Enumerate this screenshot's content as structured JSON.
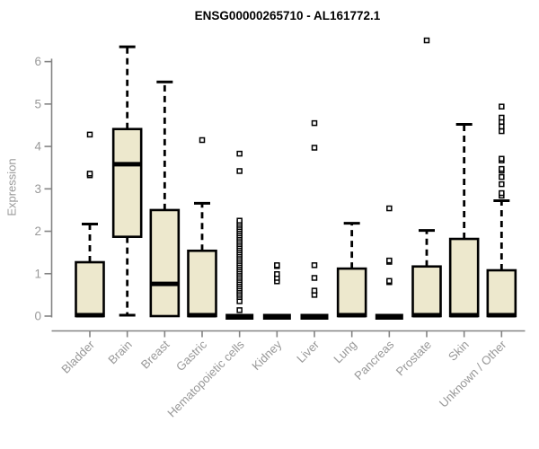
{
  "figure": {
    "title": "ENSG00000265710 - AL161772.1",
    "ylabel": "Expression"
  },
  "chart_data": {
    "type": "boxplot",
    "title": "ENSG00000265710 - AL161772.1",
    "xlabel": "",
    "ylabel": "Expression",
    "ylim": [
      0,
      6.6
    ],
    "yticks": [
      0,
      1,
      2,
      3,
      4,
      5,
      6
    ],
    "grid": false,
    "legend": false,
    "categories": [
      "Bladder",
      "Brain",
      "Breast",
      "Gastric",
      "Hematopoietic cells",
      "Kidney",
      "Liver",
      "Lung",
      "Pancreas",
      "Prostate",
      "Skin",
      "Unknown / Other"
    ],
    "series": [
      {
        "name": "Bladder",
        "whisker_low": 0,
        "q1": 0,
        "median": 0.02,
        "q3": 1.27,
        "whisker_high": 2.17,
        "outliers": [
          3.32,
          3.36,
          4.28
        ]
      },
      {
        "name": "Brain",
        "whisker_low": 0.02,
        "q1": 1.87,
        "median": 3.58,
        "q3": 4.41,
        "whisker_high": 6.35,
        "outliers": []
      },
      {
        "name": "Breast",
        "whisker_low": 0,
        "q1": 0,
        "median": 0.76,
        "q3": 2.5,
        "whisker_high": 5.52,
        "outliers": []
      },
      {
        "name": "Gastric",
        "whisker_low": 0,
        "q1": 0,
        "median": 0.02,
        "q3": 1.54,
        "whisker_high": 2.66,
        "outliers": [
          4.15
        ]
      },
      {
        "name": "Hematopoietic cells",
        "whisker_low": 0,
        "q1": 0,
        "median": 0,
        "q3": 0,
        "whisker_high": 0,
        "outliers": [
          0.14,
          0.35,
          0.45,
          0.5,
          0.55,
          0.6,
          0.65,
          0.7,
          0.75,
          0.8,
          0.85,
          0.9,
          0.95,
          1.0,
          1.05,
          1.1,
          1.15,
          1.2,
          1.25,
          1.3,
          1.35,
          1.4,
          1.45,
          1.5,
          1.55,
          1.6,
          1.65,
          1.7,
          1.75,
          1.8,
          1.85,
          1.9,
          1.95,
          2.0,
          2.05,
          2.1,
          2.15,
          2.2,
          2.25,
          3.42,
          3.83
        ]
      },
      {
        "name": "Kidney",
        "whisker_low": 0,
        "q1": 0,
        "median": 0,
        "q3": 0,
        "whisker_high": 0,
        "outliers": [
          0.82,
          0.9,
          0.99,
          1.18,
          1.2
        ]
      },
      {
        "name": "Liver",
        "whisker_low": 0,
        "q1": 0,
        "median": 0,
        "q3": 0,
        "whisker_high": 0,
        "outliers": [
          0.5,
          0.6,
          0.9,
          1.2,
          3.97,
          4.55
        ]
      },
      {
        "name": "Lung",
        "whisker_low": 0,
        "q1": 0,
        "median": 0.02,
        "q3": 1.12,
        "whisker_high": 2.19,
        "outliers": []
      },
      {
        "name": "Pancreas",
        "whisker_low": 0,
        "q1": 0,
        "median": 0,
        "q3": 0,
        "whisker_high": 0,
        "outliers": [
          0.8,
          0.83,
          1.28,
          1.31,
          2.54
        ]
      },
      {
        "name": "Prostate",
        "whisker_low": 0,
        "q1": 0,
        "median": 0.02,
        "q3": 1.17,
        "whisker_high": 2.02,
        "outliers": [
          6.5
        ]
      },
      {
        "name": "Skin",
        "whisker_low": 0,
        "q1": 0,
        "median": 0.02,
        "q3": 1.82,
        "whisker_high": 4.52,
        "outliers": []
      },
      {
        "name": "Unknown / Other",
        "whisker_low": 0,
        "q1": 0,
        "median": 0.02,
        "q3": 1.08,
        "whisker_high": 2.72,
        "outliers": [
          2.84,
          2.9,
          3.11,
          3.28,
          3.43,
          3.47,
          3.67,
          3.71,
          4.36,
          4.47,
          4.58,
          4.68,
          4.94
        ]
      }
    ],
    "colors": {
      "box_fill": "#EDE8CD",
      "box_stroke": "#000000",
      "median": "#000000",
      "whisker": "#000000",
      "outlier_stroke": "#000000",
      "outlier_fill": "#FFFFFF",
      "axis": "#848484",
      "tick_label": "#999999",
      "title": "#000000",
      "background": "#FFFFFF"
    }
  }
}
